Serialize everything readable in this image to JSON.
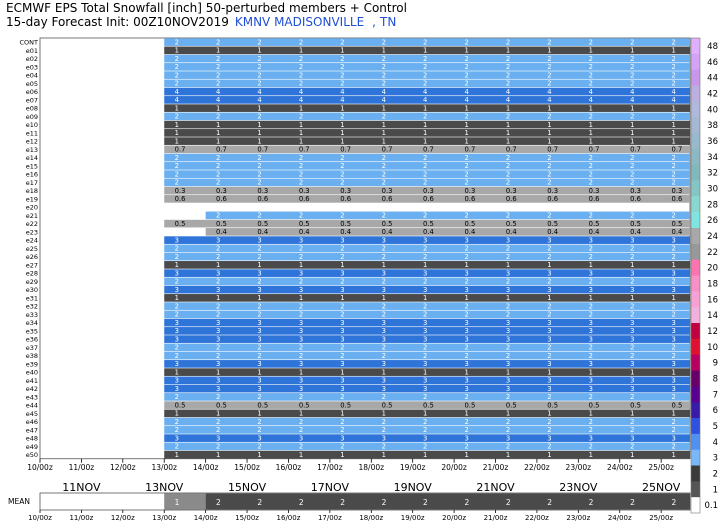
{
  "header": {
    "title": "ECMWF EPS Total Snowfall [inch]  50-perturbed members + Control",
    "subtitle": "15-day Forecast Init: 00Z10NOV2019",
    "station": "KMNV MADISONVILLE",
    "separator": ",",
    "state": "TN"
  },
  "chart_data": {
    "type": "heatmap",
    "title": "ECMWF EPS Total Snowfall [inch]  50-perturbed members + Control",
    "subtitle": "15-day Forecast Init: 00Z10NOV2019",
    "location": "KMNV MADISONVILLE , TN",
    "members": [
      "CONT",
      "e01",
      "e02",
      "e03",
      "e04",
      "e05",
      "e06",
      "e07",
      "e08",
      "e09",
      "e10",
      "e11",
      "e12",
      "e13",
      "e14",
      "e15",
      "e16",
      "e17",
      "e18",
      "e19",
      "e20",
      "e21",
      "e22",
      "e23",
      "e24",
      "e25",
      "e26",
      "e27",
      "e28",
      "e29",
      "e30",
      "e31",
      "e32",
      "e33",
      "e34",
      "e35",
      "e36",
      "e37",
      "e38",
      "e39",
      "e40",
      "e41",
      "e42",
      "e43",
      "e44",
      "e45",
      "e46",
      "e47",
      "e48",
      "e49",
      "e50"
    ],
    "first_snow_tick": [
      3,
      3,
      3,
      3,
      3,
      3,
      3,
      3,
      3,
      3,
      3,
      3,
      3,
      3,
      3,
      3,
      3,
      3,
      3,
      3,
      0,
      4,
      3,
      4,
      3,
      3,
      3,
      3,
      3,
      3,
      3,
      3,
      3,
      3,
      3,
      3,
      3,
      3,
      3,
      3,
      3,
      3,
      3,
      3,
      3,
      3,
      3,
      3,
      3,
      3,
      3
    ],
    "snow_totals": [
      2,
      1,
      2,
      2,
      2,
      2,
      4,
      4,
      1,
      2,
      1,
      1,
      1,
      0.7,
      2,
      2,
      2,
      2,
      0.3,
      0.6,
      0,
      2,
      0.5,
      0.4,
      3,
      2,
      2,
      1,
      3,
      2,
      3,
      1,
      2,
      2,
      3,
      3,
      3,
      2,
      2,
      3,
      1,
      3,
      3,
      2,
      0.5,
      1,
      2,
      2,
      3,
      2,
      1
    ],
    "mean": {
      "label": "MEAN",
      "first_value": 1,
      "value": 2
    },
    "x_ticks": [
      "10/00z",
      "11/00z",
      "12/00z",
      "13/00z",
      "14/00z",
      "15/00z",
      "16/00z",
      "17/00z",
      "18/00z",
      "19/00z",
      "20/00z",
      "21/00z",
      "22/00z",
      "23/00z",
      "24/00z",
      "25/00z"
    ],
    "day_labels": [
      "11NOV",
      "13NOV",
      "15NOV",
      "17NOV",
      "19NOV",
      "21NOV",
      "23NOV",
      "25NOV"
    ],
    "colorbar": {
      "ticks": [
        "48",
        "46",
        "44",
        "42",
        "40",
        "38",
        "36",
        "34",
        "32",
        "30",
        "28",
        "26",
        "24",
        "22",
        "20",
        "18",
        "16",
        "14",
        "12",
        "10",
        "9",
        "8",
        "7",
        "6",
        "5",
        "4",
        "3",
        "2",
        "1",
        "0.1"
      ],
      "colors": [
        "#e0b0ff",
        "#d4a3f5",
        "#c897ec",
        "#bcaee0",
        "#b0b8dc",
        "#a4b8d4",
        "#98b8cc",
        "#8cb8c4",
        "#80b8be",
        "#84c6c6",
        "#88d8d0",
        "#80e4e0",
        "#a8a8a8",
        "#989898",
        "#fa74b0",
        "#f890c8",
        "#f6a0d4",
        "#f2b0dc",
        "#c00040",
        "#e01030",
        "#b80060",
        "#6a006a",
        "#5a0090",
        "#3a1ba8",
        "#3050e0",
        "#5090f0",
        "#78b8f8",
        "#3a3a3a",
        "#555555",
        "#ffffff"
      ]
    }
  },
  "mean_label": "MEAN"
}
